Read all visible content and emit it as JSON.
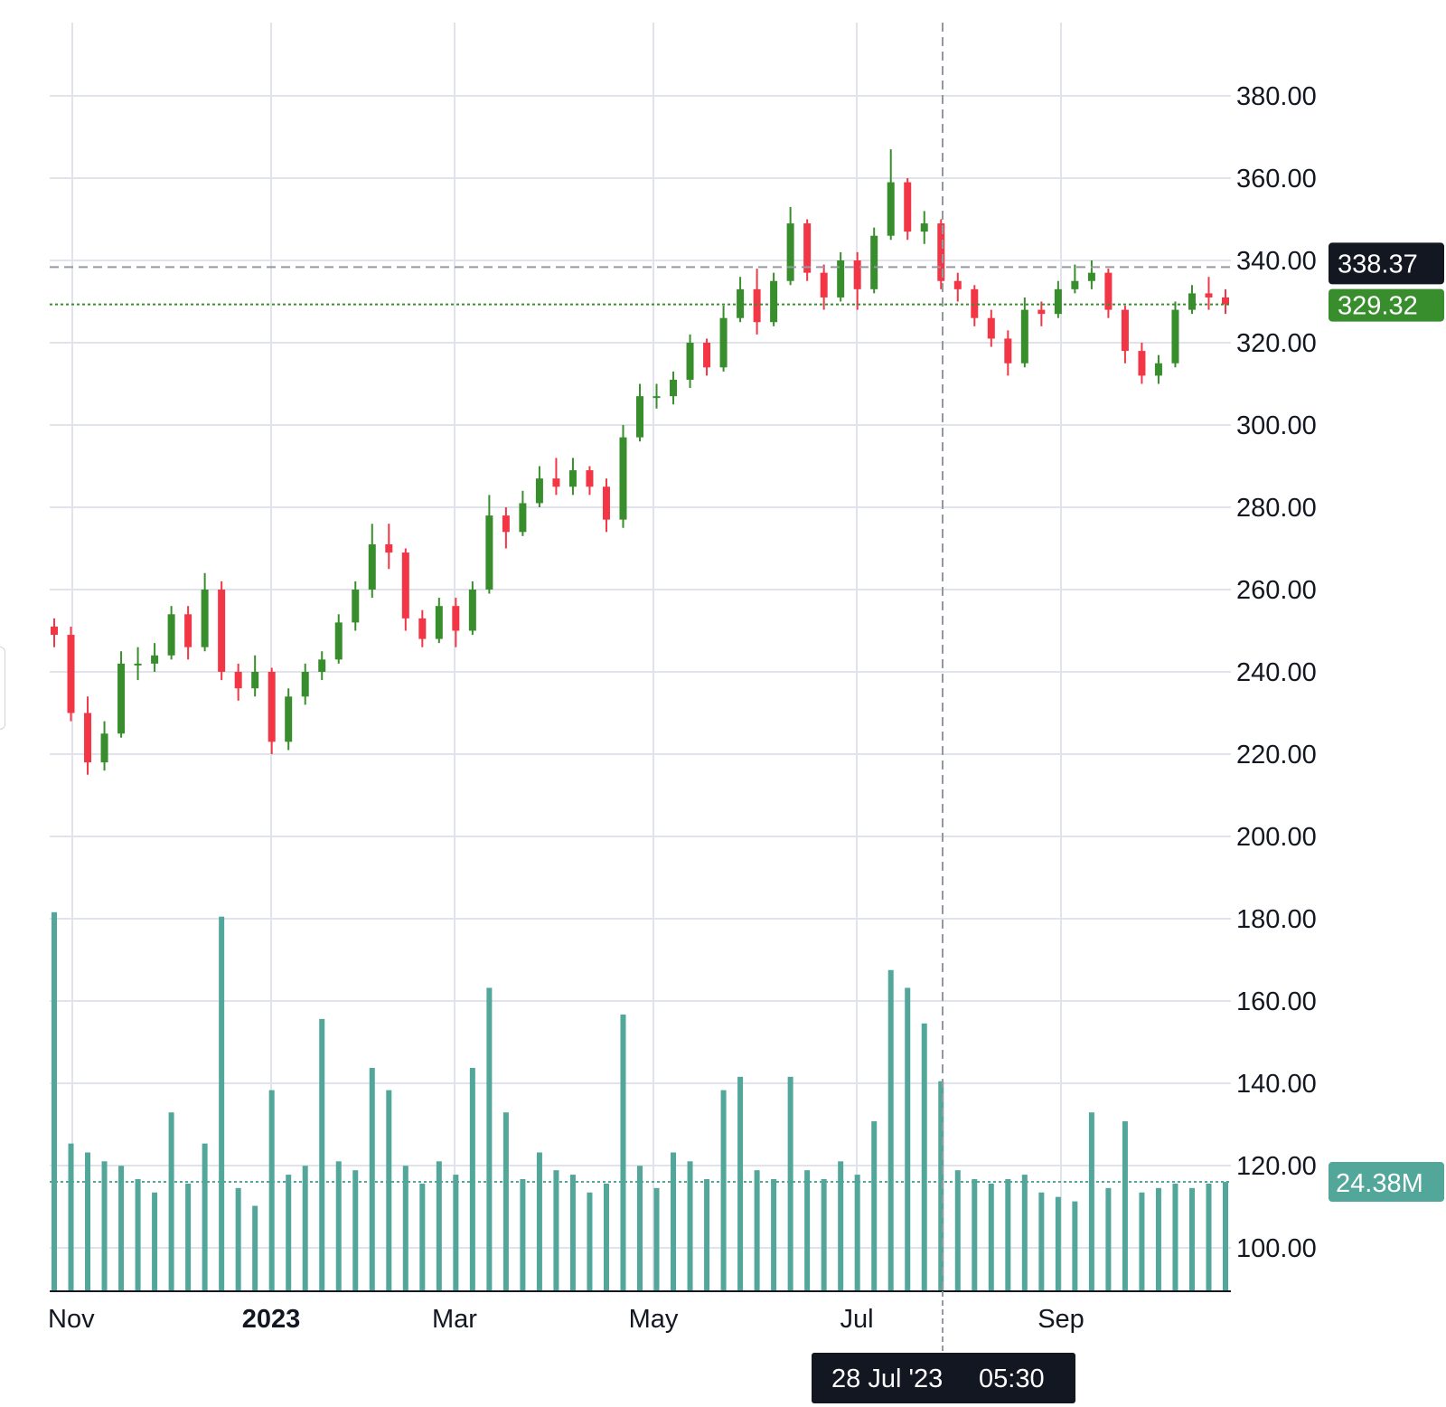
{
  "chart_data": {
    "type": "candlestick",
    "title": "",
    "xlabel": "",
    "ylabel": "",
    "ylim": [
      90,
      400
    ],
    "grid": true,
    "y_ticks": [
      "100.00",
      "120.00",
      "140.00",
      "160.00",
      "180.00",
      "200.00",
      "220.00",
      "240.00",
      "260.00",
      "280.00",
      "300.00",
      "320.00",
      "340.00",
      "360.00",
      "380.00"
    ],
    "x_ticks": [
      {
        "label": "Nov",
        "bold": false
      },
      {
        "label": "2023",
        "bold": true
      },
      {
        "label": "Mar",
        "bold": false
      },
      {
        "label": "May",
        "bold": false
      },
      {
        "label": "Jul",
        "bold": false
      },
      {
        "label": "Sep",
        "bold": false
      }
    ],
    "columns": [
      "open",
      "high",
      "low",
      "close",
      "volume_m"
    ],
    "candles": [
      [
        251,
        253,
        246,
        249,
        85
      ],
      [
        249,
        251,
        228,
        230,
        33
      ],
      [
        230,
        234,
        215,
        218,
        31
      ],
      [
        218,
        228,
        216,
        225,
        29
      ],
      [
        225,
        245,
        224,
        242,
        28
      ],
      [
        242,
        246,
        238,
        242,
        25
      ],
      [
        242,
        247,
        240,
        244,
        22
      ],
      [
        244,
        256,
        243,
        254,
        40
      ],
      [
        254,
        256,
        243,
        246,
        24
      ],
      [
        246,
        264,
        245,
        260,
        33
      ],
      [
        260,
        262,
        238,
        240,
        84
      ],
      [
        240,
        242,
        233,
        236,
        23
      ],
      [
        236,
        244,
        234,
        240,
        19
      ],
      [
        240,
        241,
        220,
        223,
        45
      ],
      [
        223,
        236,
        221,
        234,
        26
      ],
      [
        234,
        242,
        232,
        240,
        28
      ],
      [
        240,
        245,
        238,
        243,
        61
      ],
      [
        243,
        254,
        242,
        252,
        29
      ],
      [
        252,
        262,
        250,
        260,
        27
      ],
      [
        260,
        276,
        258,
        271,
        50
      ],
      [
        271,
        276,
        265,
        269,
        45
      ],
      [
        269,
        270,
        250,
        253,
        28
      ],
      [
        253,
        255,
        246,
        248,
        24
      ],
      [
        248,
        258,
        247,
        256,
        29
      ],
      [
        256,
        258,
        246,
        250,
        26
      ],
      [
        250,
        262,
        249,
        260,
        50
      ],
      [
        260,
        283,
        259,
        278,
        68
      ],
      [
        278,
        280,
        270,
        274,
        40
      ],
      [
        274,
        284,
        273,
        281,
        25
      ],
      [
        281,
        290,
        280,
        287,
        31
      ],
      [
        287,
        292,
        283,
        285,
        27
      ],
      [
        285,
        292,
        283,
        289,
        26
      ],
      [
        289,
        290,
        283,
        285,
        22
      ],
      [
        285,
        287,
        274,
        277,
        24
      ],
      [
        277,
        300,
        275,
        297,
        62
      ],
      [
        297,
        310,
        296,
        307,
        28
      ],
      [
        307,
        310,
        304,
        307,
        23
      ],
      [
        307,
        313,
        305,
        311,
        31
      ],
      [
        311,
        322,
        309,
        320,
        29
      ],
      [
        320,
        321,
        312,
        314,
        25
      ],
      [
        314,
        329,
        313,
        326,
        45
      ],
      [
        326,
        336,
        325,
        333,
        48
      ],
      [
        333,
        338,
        322,
        325,
        27
      ],
      [
        325,
        337,
        324,
        335,
        25
      ],
      [
        335,
        353,
        334,
        349,
        48
      ],
      [
        349,
        350,
        335,
        337,
        27
      ],
      [
        337,
        339,
        328,
        331,
        25
      ],
      [
        331,
        342,
        330,
        340,
        29
      ],
      [
        340,
        342,
        328,
        333,
        26
      ],
      [
        333,
        348,
        332,
        346,
        38
      ],
      [
        346,
        367,
        345,
        359,
        72
      ],
      [
        359,
        360,
        345,
        347,
        68
      ],
      [
        347,
        352,
        344,
        349,
        60
      ],
      [
        349,
        350,
        333,
        335,
        47
      ],
      [
        335,
        337,
        330,
        333,
        27
      ],
      [
        333,
        334,
        324,
        326,
        25
      ],
      [
        326,
        328,
        319,
        321,
        24
      ],
      [
        321,
        323,
        312,
        315,
        25
      ],
      [
        315,
        331,
        314,
        328,
        26
      ],
      [
        328,
        330,
        324,
        327,
        22
      ],
      [
        327,
        335,
        326,
        333,
        21
      ],
      [
        333,
        339,
        332,
        335,
        20
      ],
      [
        335,
        340,
        333,
        337,
        40
      ],
      [
        337,
        338,
        326,
        328,
        23
      ],
      [
        328,
        329,
        315,
        318,
        38
      ],
      [
        318,
        320,
        310,
        312,
        22
      ],
      [
        312,
        317,
        310,
        315,
        23
      ],
      [
        315,
        330,
        314,
        328,
        24
      ],
      [
        328,
        334,
        327,
        332,
        23
      ],
      [
        332,
        336,
        328,
        331,
        24
      ],
      [
        331,
        333,
        327,
        329.32,
        24.38
      ]
    ],
    "crosshair": {
      "price_label": "338.37",
      "price": 338.37,
      "date_label": "28 Jul '23",
      "time_label": "05:30"
    },
    "last_price": {
      "label": "329.32",
      "value": 329.32
    },
    "last_volume": {
      "label": "24.38M",
      "value": 24.38
    },
    "colors": {
      "up": "#388e2c",
      "down": "#f23645",
      "volume": "#52a79a",
      "last_price_bg": "#388e2c",
      "crosshair_bg": "#131722",
      "grid": "#e0e3eb"
    }
  }
}
